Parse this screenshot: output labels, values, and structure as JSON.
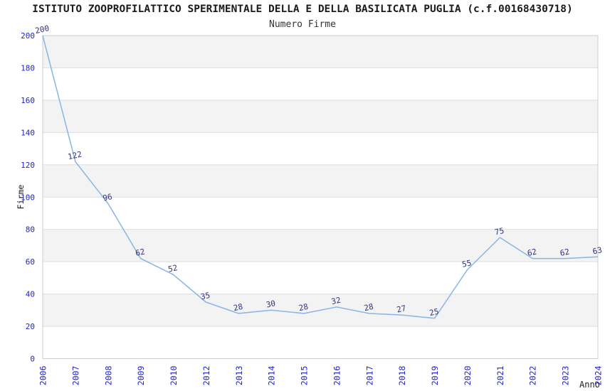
{
  "page": {
    "title": "ISTITUTO ZOOPROFILATTICO SPERIMENTALE DELLA E DELLA BASILICATA PUGLIA (c.f.00168430718)",
    "subtitle": "Numero Firme"
  },
  "chart_data": {
    "type": "line",
    "title": "Numero Firme",
    "xlabel": "Anno",
    "ylabel": "Firme",
    "categories": [
      "2006",
      "2007",
      "2008",
      "2009",
      "2010",
      "2012",
      "2013",
      "2014",
      "2015",
      "2016",
      "2017",
      "2018",
      "2019",
      "2020",
      "2021",
      "2022",
      "2023",
      "2024"
    ],
    "values": [
      200,
      122,
      96,
      62,
      52,
      35,
      28,
      30,
      28,
      32,
      28,
      27,
      25,
      55,
      75,
      62,
      62,
      63
    ],
    "point_labels": [
      "200",
      "122",
      "96",
      "62",
      "52",
      "35",
      "28",
      "30",
      "28",
      "32",
      "28",
      "27",
      "25",
      "55",
      "75",
      "62",
      "62",
      "63"
    ],
    "ylim": [
      0,
      200
    ],
    "ytick_step": 20,
    "ytick_labels": [
      "0",
      "20",
      "40",
      "60",
      "80",
      "100",
      "120",
      "140",
      "160",
      "180",
      "200"
    ],
    "grid": true,
    "legend": false,
    "banded_background": true,
    "colors": {
      "line": "#88b4e6",
      "tick_label": "#2222cc",
      "point_label": "#333380",
      "band": "#f3f3f3",
      "grid": "#dedede",
      "border": "#cccccc",
      "title": "#1a1a1a",
      "subtitle": "#333333"
    }
  }
}
